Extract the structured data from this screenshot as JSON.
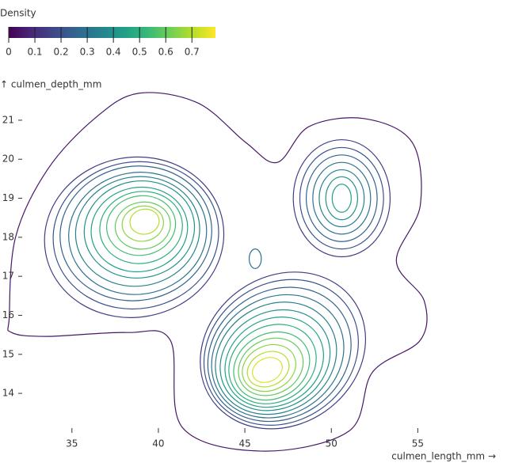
{
  "chart_data": {
    "type": "contour",
    "legend_title": "Density",
    "legend_lim": [
      0,
      0.79
    ],
    "legend_ticks": [
      0,
      0.1,
      0.2,
      0.3,
      0.4,
      0.5,
      0.6,
      0.7
    ],
    "colors": [
      "#440154",
      "#482878",
      "#3e4989",
      "#31688e",
      "#26828e",
      "#1f9e89",
      "#35b779",
      "#6ece58",
      "#b5de2b",
      "#fde725"
    ],
    "x_label": "culmen_length_mm →",
    "y_label": "↑ culmen_depth_mm",
    "xlim": [
      31.3,
      59.7
    ],
    "ylim": [
      12.42,
      21.85
    ],
    "xticks": [
      35,
      40,
      45,
      50,
      55
    ],
    "yticks": [
      14,
      15,
      16,
      17,
      18,
      19,
      20,
      21
    ],
    "outline": {
      "level": 0.05,
      "x": [
        31.38,
        31.74,
        33.58,
        36.33,
        38.85,
        42.29,
        45.05,
        46.88,
        48.72,
        51.93,
        54.68,
        55.14,
        53.76,
        55.37,
        55.14,
        52.39,
        51.01,
        45.96,
        41.38,
        40.69,
        38.17,
        33.58,
        31.51
      ],
      "y": [
        15.97,
        18.0,
        19.73,
        21.05,
        21.69,
        21.44,
        20.43,
        19.92,
        20.84,
        21.04,
        20.43,
        18.81,
        17.39,
        16.37,
        15.36,
        14.55,
        13.03,
        12.52,
        13.13,
        15.36,
        15.56,
        15.46,
        15.56
      ]
    },
    "contours": [
      {
        "level": 0.15,
        "cx": 38.6,
        "cy": 18.0,
        "rx": 5.2,
        "ry": 2.05,
        "angle": 10
      },
      {
        "level": 0.2,
        "cx": 38.7,
        "cy": 18.05,
        "rx": 4.8,
        "ry": 1.88,
        "angle": 10
      },
      {
        "level": 0.25,
        "cx": 38.7,
        "cy": 18.1,
        "rx": 4.4,
        "ry": 1.72,
        "angle": 10
      },
      {
        "level": 0.3,
        "cx": 38.8,
        "cy": 18.1,
        "rx": 4.0,
        "ry": 1.56,
        "angle": 10
      },
      {
        "level": 0.35,
        "cx": 38.8,
        "cy": 18.15,
        "rx": 3.6,
        "ry": 1.4,
        "angle": 10
      },
      {
        "level": 0.4,
        "cx": 38.9,
        "cy": 18.2,
        "rx": 3.2,
        "ry": 1.24,
        "angle": 10
      },
      {
        "level": 0.45,
        "cx": 38.9,
        "cy": 18.2,
        "rx": 2.8,
        "ry": 1.08,
        "angle": 10
      },
      {
        "level": 0.5,
        "cx": 39.0,
        "cy": 18.25,
        "rx": 2.4,
        "ry": 0.92,
        "angle": 10
      },
      {
        "level": 0.55,
        "cx": 39.0,
        "cy": 18.3,
        "rx": 2.0,
        "ry": 0.76,
        "angle": 10
      },
      {
        "level": 0.6,
        "cx": 39.1,
        "cy": 18.3,
        "rx": 1.6,
        "ry": 0.6,
        "angle": 10
      },
      {
        "level": 0.65,
        "cx": 39.1,
        "cy": 18.35,
        "rx": 1.2,
        "ry": 0.45,
        "angle": 10
      },
      {
        "level": 0.7,
        "cx": 39.2,
        "cy": 18.4,
        "rx": 0.85,
        "ry": 0.32,
        "angle": 10
      },
      {
        "level": 0.15,
        "cx": 47.2,
        "cy": 15.1,
        "rx": 5.0,
        "ry": 1.9,
        "angle": 35
      },
      {
        "level": 0.2,
        "cx": 47.1,
        "cy": 15.05,
        "rx": 4.66,
        "ry": 1.77,
        "angle": 34
      },
      {
        "level": 0.25,
        "cx": 47.0,
        "cy": 15.0,
        "rx": 4.32,
        "ry": 1.63,
        "angle": 33
      },
      {
        "level": 0.3,
        "cx": 46.9,
        "cy": 14.95,
        "rx": 3.98,
        "ry": 1.5,
        "angle": 32
      },
      {
        "level": 0.35,
        "cx": 46.8,
        "cy": 14.9,
        "rx": 3.64,
        "ry": 1.37,
        "angle": 31
      },
      {
        "level": 0.4,
        "cx": 46.75,
        "cy": 14.85,
        "rx": 3.3,
        "ry": 1.23,
        "angle": 30
      },
      {
        "level": 0.45,
        "cx": 46.7,
        "cy": 14.8,
        "rx": 2.96,
        "ry": 1.1,
        "angle": 30
      },
      {
        "level": 0.5,
        "cx": 46.6,
        "cy": 14.75,
        "rx": 2.62,
        "ry": 0.97,
        "angle": 29
      },
      {
        "level": 0.55,
        "cx": 46.55,
        "cy": 14.7,
        "rx": 2.28,
        "ry": 0.83,
        "angle": 28
      },
      {
        "level": 0.6,
        "cx": 46.5,
        "cy": 14.68,
        "rx": 1.94,
        "ry": 0.7,
        "angle": 27
      },
      {
        "level": 0.65,
        "cx": 46.4,
        "cy": 14.65,
        "rx": 1.6,
        "ry": 0.57,
        "angle": 26
      },
      {
        "level": 0.7,
        "cx": 46.35,
        "cy": 14.62,
        "rx": 1.25,
        "ry": 0.43,
        "angle": 25
      },
      {
        "level": 0.75,
        "cx": 46.3,
        "cy": 14.6,
        "rx": 0.9,
        "ry": 0.3,
        "angle": 25
      },
      {
        "level": 0.15,
        "cx": 50.6,
        "cy": 19.0,
        "rx": 2.8,
        "ry": 1.5,
        "angle": 0
      },
      {
        "level": 0.2,
        "cx": 50.6,
        "cy": 19.0,
        "rx": 2.42,
        "ry": 1.3,
        "angle": 0
      },
      {
        "level": 0.25,
        "cx": 50.6,
        "cy": 19.0,
        "rx": 2.05,
        "ry": 1.11,
        "angle": 0
      },
      {
        "level": 0.3,
        "cx": 50.6,
        "cy": 19.0,
        "rx": 1.67,
        "ry": 0.92,
        "angle": 0
      },
      {
        "level": 0.35,
        "cx": 50.6,
        "cy": 19.0,
        "rx": 1.3,
        "ry": 0.73,
        "angle": 0
      },
      {
        "level": 0.4,
        "cx": 50.6,
        "cy": 19.0,
        "rx": 0.92,
        "ry": 0.55,
        "angle": 0
      },
      {
        "level": 0.45,
        "cx": 50.6,
        "cy": 19.0,
        "rx": 0.55,
        "ry": 0.36,
        "angle": 0
      },
      {
        "level": 0.3,
        "cx": 45.6,
        "cy": 17.45,
        "rx": 0.35,
        "ry": 0.25,
        "angle": 0
      }
    ]
  }
}
